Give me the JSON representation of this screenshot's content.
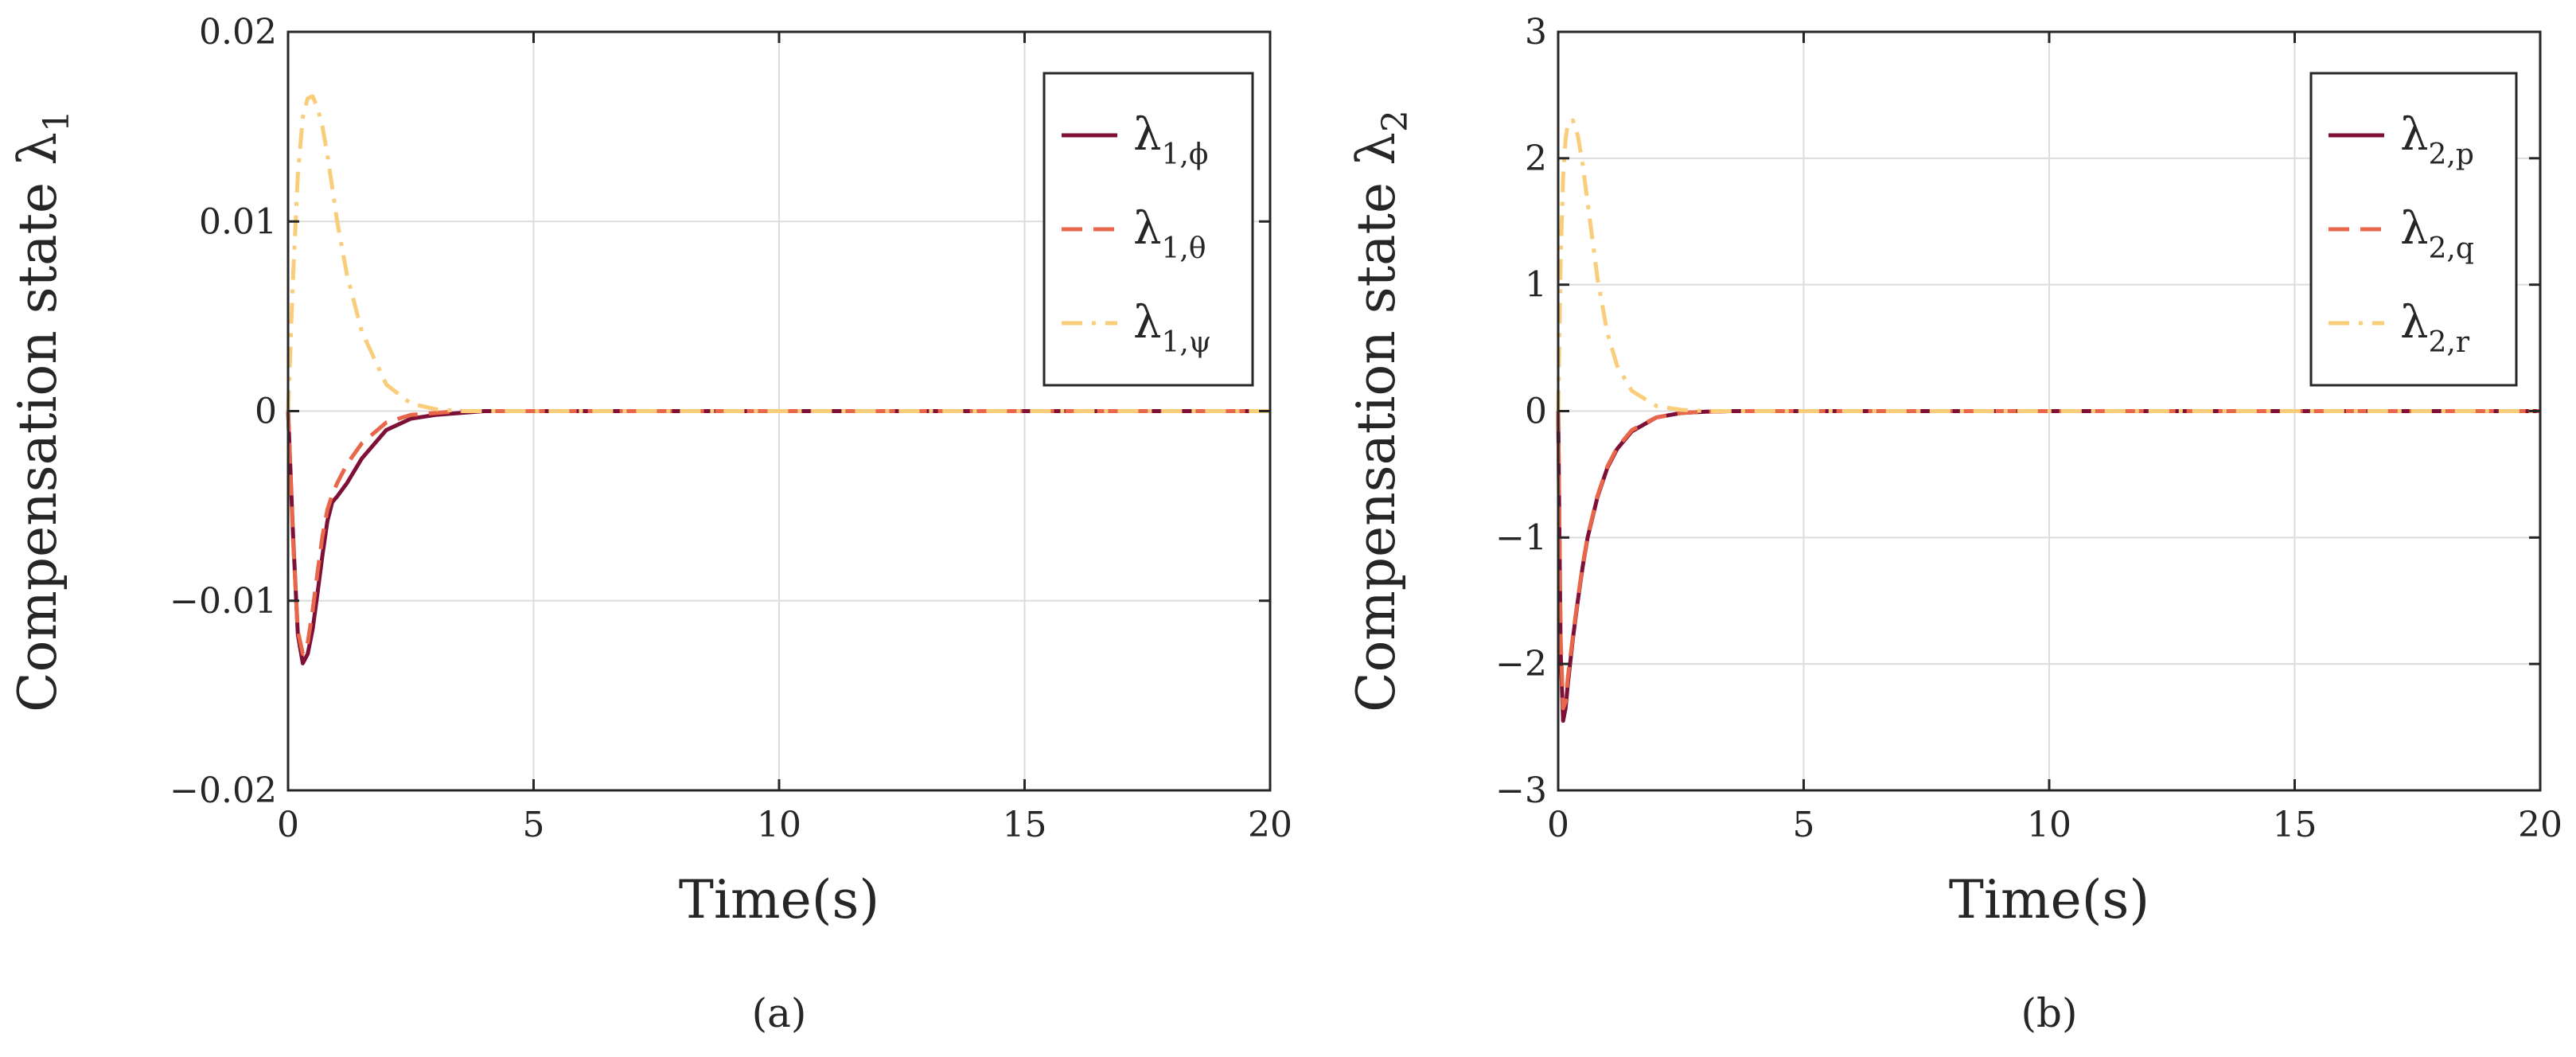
{
  "chart_data": [
    {
      "type": "line",
      "panel_label": "(a)",
      "xlabel": "Time(s)",
      "ylabel": "Compensation state λ",
      "ylabel_sub": "1",
      "xlim": [
        0,
        20
      ],
      "ylim": [
        -0.02,
        0.02
      ],
      "xticks": [
        0,
        5,
        10,
        15,
        20
      ],
      "xtick_labels": [
        "0",
        "5",
        "10",
        "15",
        "20"
      ],
      "yticks": [
        -0.02,
        -0.01,
        0,
        0.01,
        0.02
      ],
      "ytick_labels": [
        "−0.02",
        "−0.01",
        "0",
        "0.01",
        "0.02"
      ],
      "grid": true,
      "legend_position": "top-right",
      "series": [
        {
          "name": "λ1,φ",
          "label_main": "λ",
          "label_sub": "1,ϕ",
          "color": "#7e1037",
          "dash": "solid",
          "x": [
            0,
            0.1,
            0.2,
            0.3,
            0.4,
            0.5,
            0.6,
            0.7,
            0.8,
            0.9,
            1.0,
            1.2,
            1.5,
            2.0,
            2.5,
            3.0,
            3.5,
            4.0,
            5.0,
            10.0,
            20.0
          ],
          "y": [
            0,
            -0.0065,
            -0.0118,
            -0.0133,
            -0.0128,
            -0.0115,
            -0.0096,
            -0.0076,
            -0.0058,
            -0.0048,
            -0.0045,
            -0.0038,
            -0.0025,
            -0.001,
            -0.0004,
            -0.0002,
            -0.0001,
            0,
            0,
            0,
            0
          ]
        },
        {
          "name": "λ1,θ",
          "label_main": "λ",
          "label_sub": "1,θ",
          "color": "#e8674a",
          "dash": "dashed",
          "x": [
            0,
            0.1,
            0.2,
            0.3,
            0.4,
            0.5,
            0.6,
            0.7,
            0.8,
            0.9,
            1.0,
            1.2,
            1.5,
            2.0,
            2.5,
            3.0,
            3.5,
            4.0,
            5.0,
            10.0,
            20.0
          ],
          "y": [
            0,
            -0.0068,
            -0.0116,
            -0.0128,
            -0.0122,
            -0.0105,
            -0.0085,
            -0.0066,
            -0.0052,
            -0.0044,
            -0.0038,
            -0.0028,
            -0.0017,
            -0.0006,
            -0.0002,
            -0.0001,
            0,
            0,
            0,
            0,
            0
          ]
        },
        {
          "name": "λ1,ψ",
          "label_main": "λ",
          "label_sub": "1,ψ",
          "color": "#f9cd7a",
          "dash": "dashdot",
          "x": [
            0,
            0.1,
            0.2,
            0.3,
            0.4,
            0.5,
            0.6,
            0.7,
            0.8,
            0.9,
            1.0,
            1.2,
            1.5,
            2.0,
            2.5,
            3.0,
            3.5,
            4.0,
            5.0,
            10.0,
            20.0
          ],
          "y": [
            0,
            0.007,
            0.0125,
            0.0155,
            0.0165,
            0.0166,
            0.016,
            0.015,
            0.0135,
            0.0118,
            0.01,
            0.0072,
            0.0042,
            0.0014,
            0.0004,
            0.0001,
            0,
            0,
            0,
            0,
            0
          ]
        }
      ]
    },
    {
      "type": "line",
      "panel_label": "(b)",
      "xlabel": "Time(s)",
      "ylabel": "Compensation state λ",
      "ylabel_sub": "2",
      "xlim": [
        0,
        20
      ],
      "ylim": [
        -3,
        3
      ],
      "xticks": [
        0,
        5,
        10,
        15,
        20
      ],
      "xtick_labels": [
        "0",
        "5",
        "10",
        "15",
        "20"
      ],
      "yticks": [
        -3,
        -2,
        -1,
        0,
        1,
        2,
        3
      ],
      "ytick_labels": [
        "−3",
        "−2",
        "−1",
        "0",
        "1",
        "2",
        "3"
      ],
      "grid": true,
      "legend_position": "top-right",
      "series": [
        {
          "name": "λ2,p",
          "label_main": "λ",
          "label_sub": "2,p",
          "color": "#7e1037",
          "dash": "solid",
          "x": [
            0,
            0.05,
            0.1,
            0.15,
            0.2,
            0.3,
            0.4,
            0.5,
            0.6,
            0.8,
            1.0,
            1.2,
            1.5,
            2.0,
            2.5,
            3.0,
            3.5,
            4.0,
            5.0,
            10.0,
            20.0
          ],
          "y": [
            0,
            -1.9,
            -2.45,
            -2.35,
            -2.15,
            -1.8,
            -1.5,
            -1.23,
            -1.0,
            -0.68,
            -0.45,
            -0.3,
            -0.16,
            -0.05,
            -0.015,
            -0.005,
            0,
            0,
            0,
            0,
            0
          ]
        },
        {
          "name": "λ2,q",
          "label_main": "λ",
          "label_sub": "2,q",
          "color": "#e8674a",
          "dash": "dashed",
          "x": [
            0,
            0.05,
            0.1,
            0.15,
            0.2,
            0.3,
            0.4,
            0.5,
            0.6,
            0.8,
            1.0,
            1.2,
            1.5,
            2.0,
            2.5,
            3.0,
            3.5,
            4.0,
            5.0,
            10.0,
            20.0
          ],
          "y": [
            0,
            -1.8,
            -2.35,
            -2.3,
            -2.1,
            -1.78,
            -1.48,
            -1.22,
            -0.99,
            -0.67,
            -0.44,
            -0.29,
            -0.15,
            -0.05,
            -0.015,
            -0.005,
            0,
            0,
            0,
            0,
            0
          ]
        },
        {
          "name": "λ2,r",
          "label_main": "λ",
          "label_sub": "2,r",
          "color": "#f9cd7a",
          "dash": "dashdot",
          "x": [
            0,
            0.05,
            0.1,
            0.15,
            0.2,
            0.3,
            0.4,
            0.5,
            0.6,
            0.7,
            0.8,
            1.0,
            1.2,
            1.5,
            2.0,
            2.5,
            3.0,
            3.5,
            4.0,
            5.0,
            20.0
          ],
          "y": [
            0,
            1.2,
            1.85,
            2.15,
            2.28,
            2.3,
            2.18,
            1.95,
            1.65,
            1.35,
            1.05,
            0.62,
            0.36,
            0.16,
            0.04,
            0.01,
            0,
            0,
            0,
            0,
            0
          ]
        }
      ]
    }
  ]
}
